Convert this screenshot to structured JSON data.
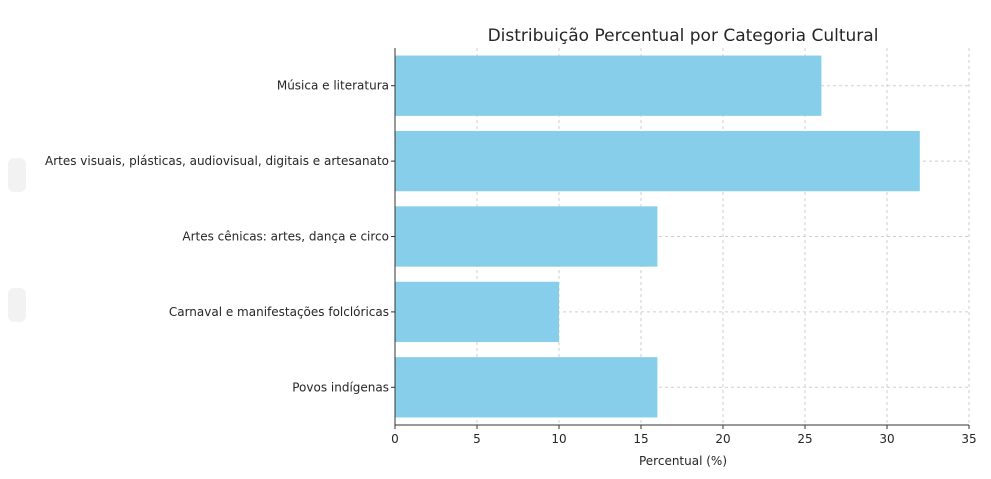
{
  "chart_data": {
    "type": "bar",
    "orientation": "horizontal",
    "title": "Distribuição Percentual por Categoria Cultural",
    "xlabel": "Percentual (%)",
    "ylabel": "",
    "categories": [
      "Música e literatura",
      "Artes visuais, plásticas, audiovisual, digitais e artesanato",
      "Artes cênicas: artes, dança e circo",
      "Carnaval e manifestações folclóricas",
      "Povos indígenas"
    ],
    "values": [
      26,
      32,
      16,
      10,
      16
    ],
    "xlim": [
      0,
      35
    ],
    "xticks": [
      0,
      5,
      10,
      15,
      20,
      25,
      30,
      35
    ],
    "grid": true,
    "bar_color": "#87ceeb"
  }
}
